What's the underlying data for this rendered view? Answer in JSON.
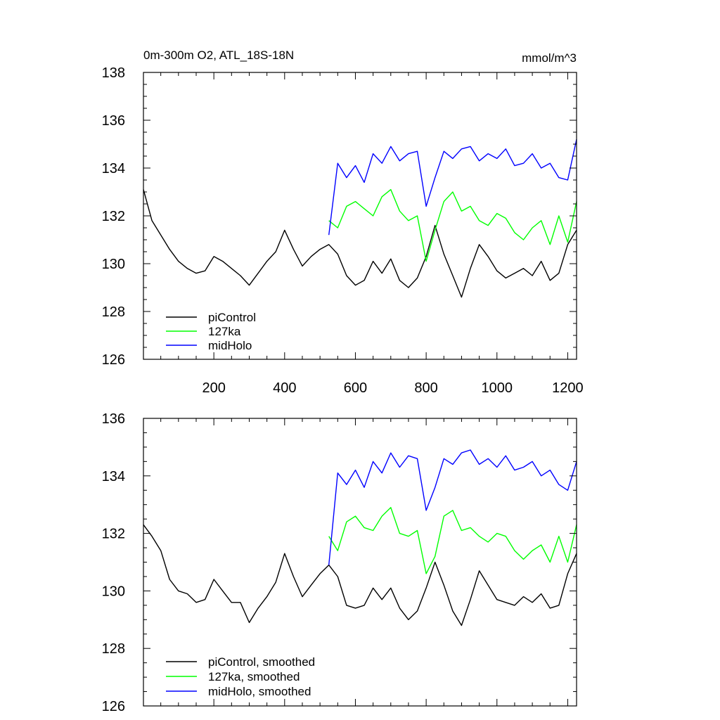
{
  "chart_data": [
    {
      "type": "line",
      "title": "0m-300m O2, ATL_18S-18N",
      "units_label": "mmol/m^3",
      "xlabel": "",
      "ylabel": "",
      "xlim": [
        1,
        1225
      ],
      "ylim": [
        126,
        138
      ],
      "xticks": [
        200,
        400,
        600,
        800,
        1000,
        1200
      ],
      "xtick_labels": [
        "200",
        "400",
        "600",
        "800",
        "1000",
        "1200"
      ],
      "yticks": [
        126,
        128,
        130,
        132,
        134,
        136,
        138
      ],
      "ytick_labels": [
        "126",
        "128",
        "130",
        "132",
        "134",
        "136",
        "138"
      ],
      "grid": false,
      "legend_position": "bottom-left",
      "series": [
        {
          "name": "piControl",
          "color": "#000000",
          "x": [
            1,
            25,
            50,
            75,
            100,
            125,
            150,
            175,
            200,
            225,
            250,
            275,
            300,
            325,
            350,
            375,
            400,
            425,
            450,
            475,
            500,
            525,
            550,
            575,
            600,
            625,
            650,
            675,
            700,
            725,
            750,
            775,
            800,
            825,
            850,
            875,
            900,
            925,
            950,
            975,
            1000,
            1025,
            1050,
            1075,
            1100,
            1125,
            1150,
            1175,
            1200,
            1225
          ],
          "values": [
            133.1,
            131.8,
            131.2,
            130.6,
            130.1,
            129.8,
            129.6,
            129.7,
            130.3,
            130.1,
            129.8,
            129.5,
            129.1,
            129.6,
            130.1,
            130.5,
            131.4,
            130.6,
            129.9,
            130.3,
            130.6,
            130.8,
            130.4,
            129.5,
            129.1,
            129.3,
            130.1,
            129.6,
            130.2,
            129.3,
            129.0,
            129.4,
            130.3,
            131.6,
            130.4,
            129.5,
            128.6,
            129.8,
            130.8,
            130.3,
            129.7,
            129.4,
            129.6,
            129.8,
            129.5,
            130.1,
            129.3,
            129.6,
            130.8,
            131.4
          ]
        },
        {
          "name": "127ka",
          "color": "#00ff00",
          "x": [
            525,
            550,
            575,
            600,
            625,
            650,
            675,
            700,
            725,
            750,
            775,
            800,
            825,
            850,
            875,
            900,
            925,
            950,
            975,
            1000,
            1025,
            1050,
            1075,
            1100,
            1125,
            1150,
            1175,
            1200,
            1225
          ],
          "values": [
            131.8,
            131.5,
            132.4,
            132.6,
            132.3,
            132.0,
            132.8,
            133.1,
            132.2,
            131.8,
            132.0,
            130.1,
            131.4,
            132.6,
            133.0,
            132.2,
            132.4,
            131.8,
            131.6,
            132.1,
            131.9,
            131.3,
            131.0,
            131.5,
            131.8,
            130.8,
            132.0,
            130.9,
            132.6
          ]
        },
        {
          "name": "midHolo",
          "color": "#0000ff",
          "x": [
            525,
            550,
            575,
            600,
            625,
            650,
            675,
            700,
            725,
            750,
            775,
            800,
            825,
            850,
            875,
            900,
            925,
            950,
            975,
            1000,
            1025,
            1050,
            1075,
            1100,
            1125,
            1150,
            1175,
            1200,
            1225
          ],
          "values": [
            131.2,
            134.2,
            133.6,
            134.1,
            133.4,
            134.6,
            134.2,
            134.9,
            134.3,
            134.6,
            134.7,
            132.4,
            133.6,
            134.7,
            134.4,
            134.8,
            134.9,
            134.3,
            134.6,
            134.4,
            134.8,
            134.1,
            134.2,
            134.6,
            134.0,
            134.2,
            133.6,
            133.5,
            135.2
          ]
        }
      ],
      "legend": [
        "piControl",
        "127ka",
        "midHolo"
      ]
    },
    {
      "type": "line",
      "title": "",
      "xlabel": "",
      "ylabel": "",
      "xlim": [
        1,
        1225
      ],
      "ylim": [
        126,
        136
      ],
      "xticks": [
        200,
        400,
        600,
        800,
        1000,
        1200
      ],
      "xtick_labels": [],
      "yticks": [
        126,
        128,
        130,
        132,
        134,
        136
      ],
      "ytick_labels": [
        "126",
        "128",
        "130",
        "132",
        "134",
        "136"
      ],
      "grid": false,
      "legend_position": "bottom-left",
      "series": [
        {
          "name": "piControl, smoothed",
          "color": "#000000",
          "x": [
            1,
            25,
            50,
            75,
            100,
            125,
            150,
            175,
            200,
            225,
            250,
            275,
            300,
            325,
            350,
            375,
            400,
            425,
            450,
            475,
            500,
            525,
            550,
            575,
            600,
            625,
            650,
            675,
            700,
            725,
            750,
            775,
            800,
            825,
            850,
            875,
            900,
            925,
            950,
            975,
            1000,
            1025,
            1050,
            1075,
            1100,
            1125,
            1150,
            1175,
            1200,
            1225
          ],
          "values": [
            132.3,
            131.9,
            131.4,
            130.4,
            130.0,
            129.9,
            129.6,
            129.7,
            130.4,
            130.0,
            129.6,
            129.6,
            128.9,
            129.4,
            129.8,
            130.3,
            131.3,
            130.5,
            129.8,
            130.2,
            130.6,
            130.9,
            130.5,
            129.5,
            129.4,
            129.5,
            130.1,
            129.7,
            130.1,
            129.4,
            129.0,
            129.3,
            130.1,
            131.0,
            130.2,
            129.3,
            128.8,
            129.7,
            130.7,
            130.2,
            129.7,
            129.6,
            129.5,
            129.8,
            129.6,
            129.9,
            129.4,
            129.5,
            130.6,
            131.3
          ]
        },
        {
          "name": "127ka, smoothed",
          "color": "#00ff00",
          "x": [
            525,
            550,
            575,
            600,
            625,
            650,
            675,
            700,
            725,
            750,
            775,
            800,
            825,
            850,
            875,
            900,
            925,
            950,
            975,
            1000,
            1025,
            1050,
            1075,
            1100,
            1125,
            1150,
            1175,
            1200,
            1225
          ],
          "values": [
            131.9,
            131.4,
            132.4,
            132.6,
            132.2,
            132.1,
            132.6,
            132.9,
            132.0,
            131.9,
            132.1,
            130.6,
            131.2,
            132.6,
            132.8,
            132.1,
            132.2,
            131.9,
            131.7,
            132.0,
            131.9,
            131.4,
            131.1,
            131.4,
            131.6,
            131.0,
            131.9,
            131.0,
            132.3
          ]
        },
        {
          "name": "midHolo, smoothed",
          "color": "#0000ff",
          "x": [
            525,
            550,
            575,
            600,
            625,
            650,
            675,
            700,
            725,
            750,
            775,
            800,
            825,
            850,
            875,
            900,
            925,
            950,
            975,
            1000,
            1025,
            1050,
            1075,
            1100,
            1125,
            1150,
            1175,
            1200,
            1225
          ],
          "values": [
            130.9,
            134.1,
            133.7,
            134.2,
            133.6,
            134.5,
            134.1,
            134.8,
            134.3,
            134.7,
            134.6,
            132.8,
            133.6,
            134.6,
            134.4,
            134.8,
            134.9,
            134.4,
            134.6,
            134.3,
            134.7,
            134.2,
            134.3,
            134.5,
            134.0,
            134.2,
            133.7,
            133.5,
            134.5
          ]
        }
      ],
      "legend": [
        "piControl, smoothed",
        "127ka, smoothed",
        "midHolo, smoothed"
      ]
    }
  ]
}
